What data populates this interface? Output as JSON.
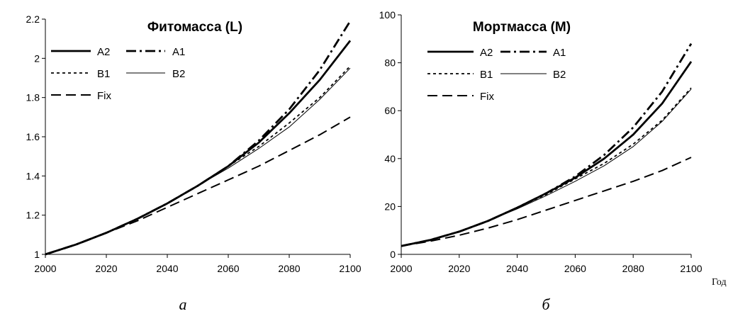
{
  "figure": {
    "x_unit_label": "Год",
    "captions": [
      "а",
      "б"
    ]
  },
  "chart_data": [
    {
      "type": "line",
      "title": "Фитомасса (L)",
      "xlim": [
        2000,
        2100
      ],
      "ylim": [
        1,
        2.2
      ],
      "xticks": [
        "2000",
        "2020",
        "2040",
        "2060",
        "2080",
        "2100"
      ],
      "yticks": [
        "1",
        "1.2",
        "1.4",
        "1.6",
        "1.8",
        "2",
        "2.2"
      ],
      "grid": false,
      "legend": "top-left",
      "x": [
        2000,
        2010,
        2020,
        2030,
        2040,
        2050,
        2060,
        2070,
        2080,
        2090,
        2100
      ],
      "series": [
        {
          "name": "A2",
          "values": [
            1.0,
            1.05,
            1.11,
            1.18,
            1.26,
            1.35,
            1.45,
            1.57,
            1.72,
            1.89,
            2.09
          ]
        },
        {
          "name": "A1",
          "values": [
            1.0,
            1.05,
            1.11,
            1.18,
            1.26,
            1.35,
            1.45,
            1.58,
            1.74,
            1.94,
            2.19
          ]
        },
        {
          "name": "B1",
          "values": [
            1.0,
            1.05,
            1.11,
            1.18,
            1.26,
            1.35,
            1.45,
            1.55,
            1.67,
            1.8,
            1.96
          ]
        },
        {
          "name": "B2",
          "values": [
            1.0,
            1.05,
            1.11,
            1.18,
            1.26,
            1.35,
            1.44,
            1.54,
            1.65,
            1.79,
            1.95
          ]
        },
        {
          "name": "Fix",
          "values": [
            1.0,
            1.05,
            1.11,
            1.17,
            1.24,
            1.31,
            1.38,
            1.45,
            1.53,
            1.61,
            1.7
          ]
        }
      ]
    },
    {
      "type": "line",
      "title": "Мортмасса (M)",
      "xlim": [
        2000,
        2100
      ],
      "ylim": [
        0,
        100
      ],
      "xticks": [
        "2000",
        "2020",
        "2040",
        "2060",
        "2080",
        "2100"
      ],
      "yticks": [
        "0",
        "20",
        "40",
        "60",
        "80",
        "100"
      ],
      "grid": false,
      "legend": "top-left",
      "x": [
        2000,
        2010,
        2020,
        2030,
        2040,
        2050,
        2060,
        2070,
        2080,
        2090,
        2100
      ],
      "series": [
        {
          "name": "A2",
          "values": [
            3.5,
            6.0,
            9.5,
            14.0,
            19.5,
            25.5,
            32.0,
            40.0,
            50.0,
            63.0,
            80.5
          ]
        },
        {
          "name": "A1",
          "values": [
            3.5,
            6.0,
            9.5,
            14.0,
            19.5,
            25.5,
            32.5,
            41.5,
            53.0,
            68.0,
            88.0
          ]
        },
        {
          "name": "B1",
          "values": [
            3.5,
            6.0,
            9.5,
            14.0,
            19.5,
            25.0,
            31.5,
            38.0,
            46.0,
            56.0,
            69.5
          ]
        },
        {
          "name": "B2",
          "values": [
            3.5,
            6.0,
            9.5,
            14.0,
            19.0,
            24.5,
            30.5,
            37.0,
            45.0,
            55.5,
            69.0
          ]
        },
        {
          "name": "Fix",
          "values": [
            3.5,
            5.5,
            8.0,
            11.0,
            14.5,
            18.5,
            22.5,
            26.5,
            30.5,
            35.0,
            40.5
          ]
        }
      ]
    }
  ]
}
